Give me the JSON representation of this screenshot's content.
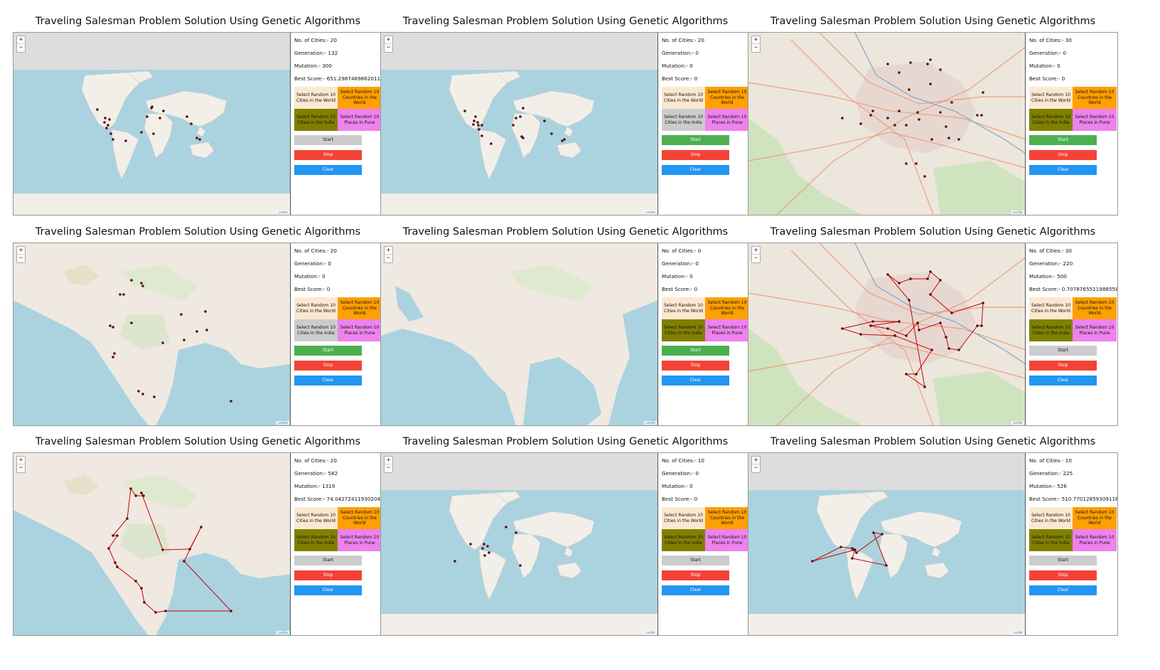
{
  "page_title": "Traveling Salesman Problem Solution Using Genetic Algorithms",
  "labels": {
    "cities": "No. of Cities:-",
    "generation": "Generation:-",
    "mutation": "Mutation:-",
    "best_score": "Best Score:-"
  },
  "buttons": {
    "random_cities_world": "Select Random 10 Cities in the World",
    "random_countries_world": "Select Random 10 Countries in the World",
    "random_cities_india": "Select Random 10 Cities in the India",
    "random_places_pune": "Select Random 10 Places in Pune",
    "start": "Start",
    "stop": "Stop",
    "clear": "Clear"
  },
  "zoom": {
    "in": "+",
    "out": "−"
  },
  "attribution": "Leaflet",
  "colors": {
    "ocean": "#aad3df",
    "land": "#f2efe9",
    "grey_band": "#dddddd",
    "route": "#cc0000",
    "marker": "#5a0d0d",
    "start_active": "#4caf50",
    "start_inactive": "#cccccc",
    "india_inactive": "#cccccc"
  },
  "panels": [
    {
      "map": "world",
      "cities": "20",
      "generation": "132",
      "mutation": "300",
      "best_score": "651.2987489862011",
      "start_active": false,
      "india_active": true,
      "route": true,
      "points": [
        [
          118,
          108
        ],
        [
          129,
          120
        ],
        [
          135,
          122
        ],
        [
          128,
          126
        ],
        [
          133,
          130
        ],
        [
          131,
          134
        ],
        [
          137,
          142
        ],
        [
          140,
          150
        ],
        [
          158,
          152
        ],
        [
          180,
          140
        ],
        [
          197,
          142
        ],
        [
          188,
          118
        ],
        [
          194,
          106
        ],
        [
          206,
          120
        ],
        [
          211,
          110
        ],
        [
          244,
          118
        ],
        [
          250,
          128
        ],
        [
          262,
          150
        ],
        [
          258,
          148
        ],
        [
          195,
          104
        ]
      ]
    },
    {
      "map": "world",
      "cities": "20",
      "generation": "0",
      "mutation": "0",
      "best_score": "0",
      "start_active": true,
      "india_active": false,
      "route": false,
      "points": [
        [
          118,
          110
        ],
        [
          131,
          124
        ],
        [
          133,
          118
        ],
        [
          136,
          126
        ],
        [
          130,
          129
        ],
        [
          137,
          130
        ],
        [
          142,
          130
        ],
        [
          138,
          136
        ],
        [
          142,
          145
        ],
        [
          155,
          156
        ],
        [
          186,
          130
        ],
        [
          190,
          120
        ],
        [
          196,
          118
        ],
        [
          200,
          106
        ],
        [
          198,
          146
        ],
        [
          200,
          148
        ],
        [
          230,
          124
        ],
        [
          240,
          142
        ],
        [
          258,
          150
        ],
        [
          255,
          152
        ]
      ]
    },
    {
      "map": "pune",
      "cities": "30",
      "generation": "0",
      "mutation": "0",
      "best_score": "0",
      "start_active": true,
      "india_active": true,
      "route": false,
      "points": [
        [
          196,
          44
        ],
        [
          212,
          56
        ],
        [
          228,
          42
        ],
        [
          252,
          44
        ],
        [
          256,
          38
        ],
        [
          270,
          52
        ],
        [
          256,
          72
        ],
        [
          226,
          80
        ],
        [
          212,
          110
        ],
        [
          175,
          110
        ],
        [
          132,
          120
        ],
        [
          158,
          128
        ],
        [
          172,
          116
        ],
        [
          196,
          120
        ],
        [
          206,
          130
        ],
        [
          222,
          130
        ],
        [
          238,
          112
        ],
        [
          240,
          122
        ],
        [
          270,
          112
        ],
        [
          278,
          132
        ],
        [
          282,
          148
        ],
        [
          296,
          150
        ],
        [
          322,
          116
        ],
        [
          328,
          116
        ],
        [
          330,
          84
        ],
        [
          286,
          98
        ],
        [
          258,
          150
        ],
        [
          236,
          184
        ],
        [
          222,
          184
        ],
        [
          248,
          202
        ]
      ]
    },
    {
      "map": "india",
      "cities": "20",
      "generation": "0",
      "mutation": "0",
      "best_score": "0",
      "start_active": true,
      "india_active": false,
      "route": false,
      "points": [
        [
          150,
          72
        ],
        [
          166,
          52
        ],
        [
          180,
          56
        ],
        [
          182,
          60
        ],
        [
          155,
          72
        ],
        [
          136,
          116
        ],
        [
          140,
          118
        ],
        [
          166,
          112
        ],
        [
          210,
          140
        ],
        [
          236,
          100
        ],
        [
          270,
          96
        ],
        [
          272,
          122
        ],
        [
          258,
          124
        ],
        [
          240,
          136
        ],
        [
          140,
          160
        ],
        [
          142,
          155
        ],
        [
          176,
          208
        ],
        [
          182,
          212
        ],
        [
          198,
          216
        ],
        [
          306,
          222
        ]
      ]
    },
    {
      "map": "asia",
      "cities": "0",
      "generation": "0",
      "mutation": "0",
      "best_score": "0",
      "start_active": true,
      "india_active": true,
      "route": false,
      "points": []
    },
    {
      "map": "pune",
      "cities": "30",
      "generation": "220",
      "mutation": "500",
      "best_score": "0.7078765511988558",
      "start_active": false,
      "india_active": true,
      "route": true,
      "points": [
        [
          196,
          44
        ],
        [
          212,
          56
        ],
        [
          228,
          50
        ],
        [
          252,
          50
        ],
        [
          256,
          40
        ],
        [
          270,
          52
        ],
        [
          256,
          72
        ],
        [
          226,
          80
        ],
        [
          212,
          110
        ],
        [
          175,
          110
        ],
        [
          132,
          120
        ],
        [
          158,
          128
        ],
        [
          172,
          116
        ],
        [
          196,
          120
        ],
        [
          206,
          130
        ],
        [
          222,
          130
        ],
        [
          238,
          112
        ],
        [
          240,
          122
        ],
        [
          270,
          112
        ],
        [
          278,
          132
        ],
        [
          282,
          148
        ],
        [
          296,
          150
        ],
        [
          322,
          116
        ],
        [
          328,
          116
        ],
        [
          330,
          84
        ],
        [
          286,
          98
        ],
        [
          258,
          150
        ],
        [
          236,
          184
        ],
        [
          222,
          184
        ],
        [
          248,
          202
        ]
      ],
      "path": [
        0,
        1,
        2,
        3,
        4,
        5,
        6,
        25,
        24,
        23,
        22,
        21,
        20,
        19,
        18,
        17,
        16,
        15,
        13,
        12,
        8,
        9,
        10,
        11,
        14,
        26,
        27,
        28,
        29,
        7,
        0
      ]
    },
    {
      "map": "india",
      "cities": "20",
      "generation": "582",
      "mutation": "1319",
      "best_score": "74.04272411930204",
      "start_active": false,
      "india_active": true,
      "route": true,
      "points": [
        [
          165,
          50
        ],
        [
          180,
          56
        ],
        [
          183,
          60
        ],
        [
          172,
          60
        ],
        [
          160,
          92
        ],
        [
          140,
          116
        ],
        [
          146,
          116
        ],
        [
          134,
          134
        ],
        [
          143,
          154
        ],
        [
          146,
          160
        ],
        [
          172,
          180
        ],
        [
          180,
          190
        ],
        [
          184,
          210
        ],
        [
          200,
          224
        ],
        [
          214,
          222
        ],
        [
          306,
          222
        ],
        [
          240,
          152
        ],
        [
          264,
          104
        ],
        [
          248,
          135
        ],
        [
          210,
          136
        ]
      ],
      "path": [
        0,
        3,
        2,
        1,
        19,
        18,
        17,
        16,
        15,
        14,
        13,
        12,
        11,
        10,
        9,
        8,
        7,
        6,
        5,
        4,
        0
      ]
    },
    {
      "map": "world",
      "cities": "10",
      "generation": "0",
      "mutation": "0",
      "best_score": "0",
      "start_active": false,
      "india_active": true,
      "route": false,
      "points": [
        [
          126,
          128
        ],
        [
          143,
          134
        ],
        [
          145,
          128
        ],
        [
          150,
          131
        ],
        [
          152,
          140
        ],
        [
          146,
          144
        ],
        [
          104,
          152
        ],
        [
          176,
          104
        ],
        [
          190,
          112
        ],
        [
          196,
          158
        ]
      ]
    },
    {
      "map": "world",
      "cities": "10",
      "generation": "225",
      "mutation": "526",
      "best_score": "510.77012859309116",
      "start_active": false,
      "india_active": true,
      "route": true,
      "points": [
        [
          90,
          152
        ],
        [
          130,
          132
        ],
        [
          146,
          134
        ],
        [
          148,
          136
        ],
        [
          152,
          140
        ],
        [
          146,
          148
        ],
        [
          188,
          114
        ],
        [
          176,
          112
        ],
        [
          194,
          158
        ],
        [
          150,
          136
        ]
      ],
      "path": [
        0,
        1,
        2,
        3,
        4,
        6,
        7,
        8,
        5,
        9,
        0
      ]
    }
  ]
}
